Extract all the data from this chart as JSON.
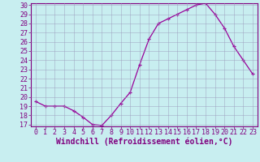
{
  "x": [
    0,
    1,
    2,
    3,
    4,
    5,
    6,
    7,
    8,
    9,
    10,
    11,
    12,
    13,
    14,
    15,
    16,
    17,
    18,
    19,
    20,
    21,
    22,
    23
  ],
  "y": [
    19.5,
    19.0,
    19.0,
    19.0,
    18.5,
    17.8,
    17.0,
    16.9,
    18.0,
    19.3,
    20.5,
    23.5,
    26.3,
    28.0,
    28.5,
    29.0,
    29.5,
    30.0,
    30.2,
    29.0,
    27.5,
    25.5,
    24.0,
    22.5
  ],
  "line_color": "#990099",
  "marker": "+",
  "bg_color": "#c8eef0",
  "grid_color": "#9999bb",
  "xlabel": "Windchill (Refroidissement éolien,°C)",
  "ylim": [
    17,
    30
  ],
  "xlim": [
    -0.5,
    23.5
  ],
  "yticks": [
    17,
    18,
    19,
    20,
    21,
    22,
    23,
    24,
    25,
    26,
    27,
    28,
    29,
    30
  ],
  "xticks": [
    0,
    1,
    2,
    3,
    4,
    5,
    6,
    7,
    8,
    9,
    10,
    11,
    12,
    13,
    14,
    15,
    16,
    17,
    18,
    19,
    20,
    21,
    22,
    23
  ],
  "xlabel_color": "#800080",
  "tick_color": "#800080",
  "spine_color": "#800080",
  "label_fontsize": 7.0,
  "tick_fontsize": 6.0
}
